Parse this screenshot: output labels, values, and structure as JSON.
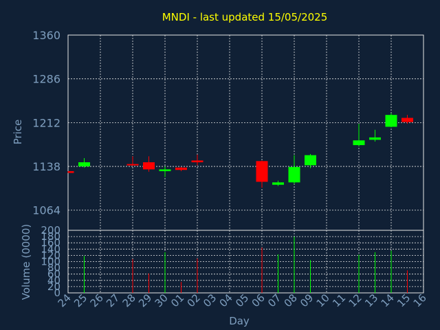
{
  "chart_data": {
    "type": "candlestick",
    "title": "MNDI - last updated 15/05/2025",
    "xlabel": "Day",
    "price_ylabel": "Price",
    "volume_ylabel": "Volume (0000)",
    "price_ylim": [
      1030,
      1360
    ],
    "price_ticks": [
      "1360",
      "1286",
      "1212",
      "1138",
      "1064"
    ],
    "volume_ylim": [
      0,
      200
    ],
    "volume_ticks": [
      "200",
      "180",
      "160",
      "140",
      "120",
      "100",
      "80",
      "60",
      "40",
      "20",
      "0"
    ],
    "days": [
      "24",
      "25",
      "26",
      "27",
      "28",
      "29",
      "30",
      "01",
      "02",
      "03",
      "04",
      "05",
      "06",
      "07",
      "08",
      "09",
      "10",
      "11",
      "12",
      "13",
      "14",
      "15",
      "16"
    ],
    "up_color": "#00ff00",
    "down_color": "#ff0000",
    "text_color": "#ffff00",
    "axis_label_color": "#7f9fbf",
    "grid": true,
    "candles": [
      {
        "day": "24",
        "open": 1130,
        "close": 1127,
        "high": 1130,
        "low": 1127,
        "volume": 0
      },
      {
        "day": "25",
        "open": 1138,
        "close": 1145,
        "high": 1152,
        "low": 1136,
        "volume": 118
      },
      {
        "day": "28",
        "open": 1142,
        "close": 1140,
        "high": 1155,
        "low": 1139,
        "volume": 108
      },
      {
        "day": "29",
        "open": 1145,
        "close": 1133,
        "high": 1155,
        "low": 1129,
        "volume": 62
      },
      {
        "day": "30",
        "open": 1130,
        "close": 1133,
        "high": 1138,
        "low": 1120,
        "volume": 130
      },
      {
        "day": "01",
        "open": 1136,
        "close": 1132,
        "high": 1137,
        "low": 1130,
        "volume": 35
      },
      {
        "day": "02",
        "open": 1148,
        "close": 1145,
        "high": 1158,
        "low": 1140,
        "volume": 110
      },
      {
        "day": "06",
        "open": 1147,
        "close": 1112,
        "high": 1148,
        "low": 1102,
        "volume": 145
      },
      {
        "day": "07",
        "open": 1107,
        "close": 1111,
        "high": 1114,
        "low": 1105,
        "volume": 123
      },
      {
        "day": "08",
        "open": 1111,
        "close": 1137,
        "high": 1157,
        "low": 1108,
        "volume": 180
      },
      {
        "day": "09",
        "open": 1140,
        "close": 1157,
        "high": 1159,
        "low": 1135,
        "volume": 105
      },
      {
        "day": "12",
        "open": 1174,
        "close": 1182,
        "high": 1210,
        "low": 1172,
        "volume": 122
      },
      {
        "day": "13",
        "open": 1183,
        "close": 1187,
        "high": 1200,
        "low": 1180,
        "volume": 130
      },
      {
        "day": "14",
        "open": 1205,
        "close": 1225,
        "high": 1228,
        "low": 1204,
        "volume": 135
      },
      {
        "day": "15",
        "open": 1220,
        "close": 1213,
        "high": 1225,
        "low": 1210,
        "volume": 72
      }
    ]
  }
}
